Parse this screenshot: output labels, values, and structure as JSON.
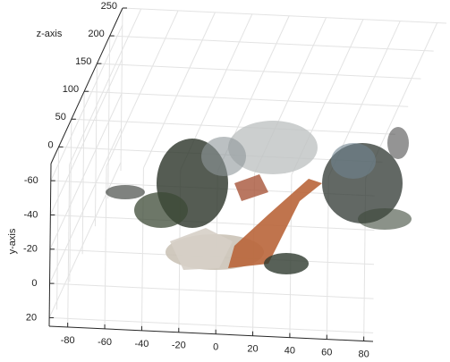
{
  "chart_data": {
    "type": "scatter3d",
    "ylabel": "y-axis",
    "zlabel": "z-axis",
    "xlim": [
      -90,
      85
    ],
    "xticks": [
      -80,
      -60,
      -40,
      -20,
      0,
      20,
      40,
      60,
      80
    ],
    "ylim": [
      -70,
      25
    ],
    "yticks": [
      -60,
      -40,
      -20,
      0,
      20
    ],
    "zlim": [
      -30,
      250
    ],
    "zticks": [
      0,
      50,
      100,
      150,
      200,
      250
    ],
    "grid": true
  }
}
